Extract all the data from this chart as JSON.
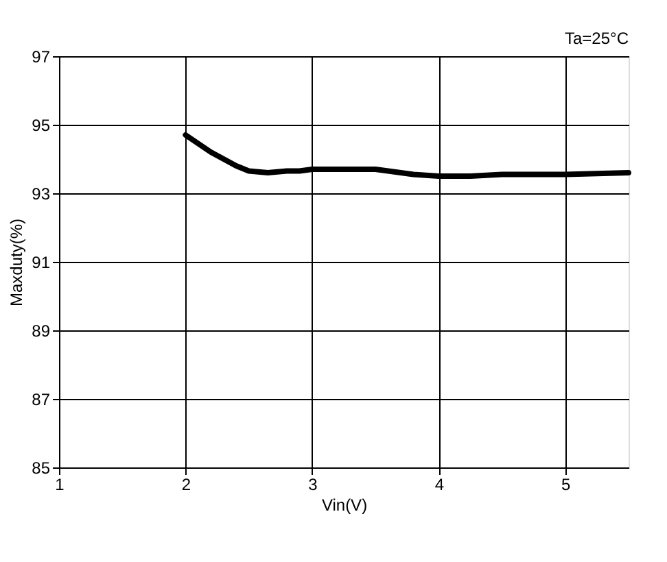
{
  "chart_data": {
    "type": "line",
    "xlabel": "Vin(V)",
    "ylabel": "Maxduty(%)",
    "annotations": [
      "Ta=25°C"
    ],
    "x": [
      2,
      2.2,
      2.4,
      2.5,
      2.65,
      2.8,
      2.9,
      3,
      3.5,
      3.8,
      4,
      4.25,
      4.5,
      5,
      5.5
    ],
    "series": [
      {
        "color": "#000000",
        "values": [
          94.7,
          94.2,
          93.8,
          93.65,
          93.6,
          93.65,
          93.65,
          93.7,
          93.7,
          93.55,
          93.5,
          93.5,
          93.55,
          93.55,
          93.6
        ]
      }
    ],
    "xlim": [
      1,
      5.5
    ],
    "xticks": [
      1,
      2,
      3,
      4,
      5
    ],
    "ylim": [
      85,
      97
    ],
    "yticks": [
      85,
      87,
      89,
      91,
      93,
      95,
      97
    ],
    "grid": true,
    "marker": "none",
    "line_style": "solid"
  }
}
